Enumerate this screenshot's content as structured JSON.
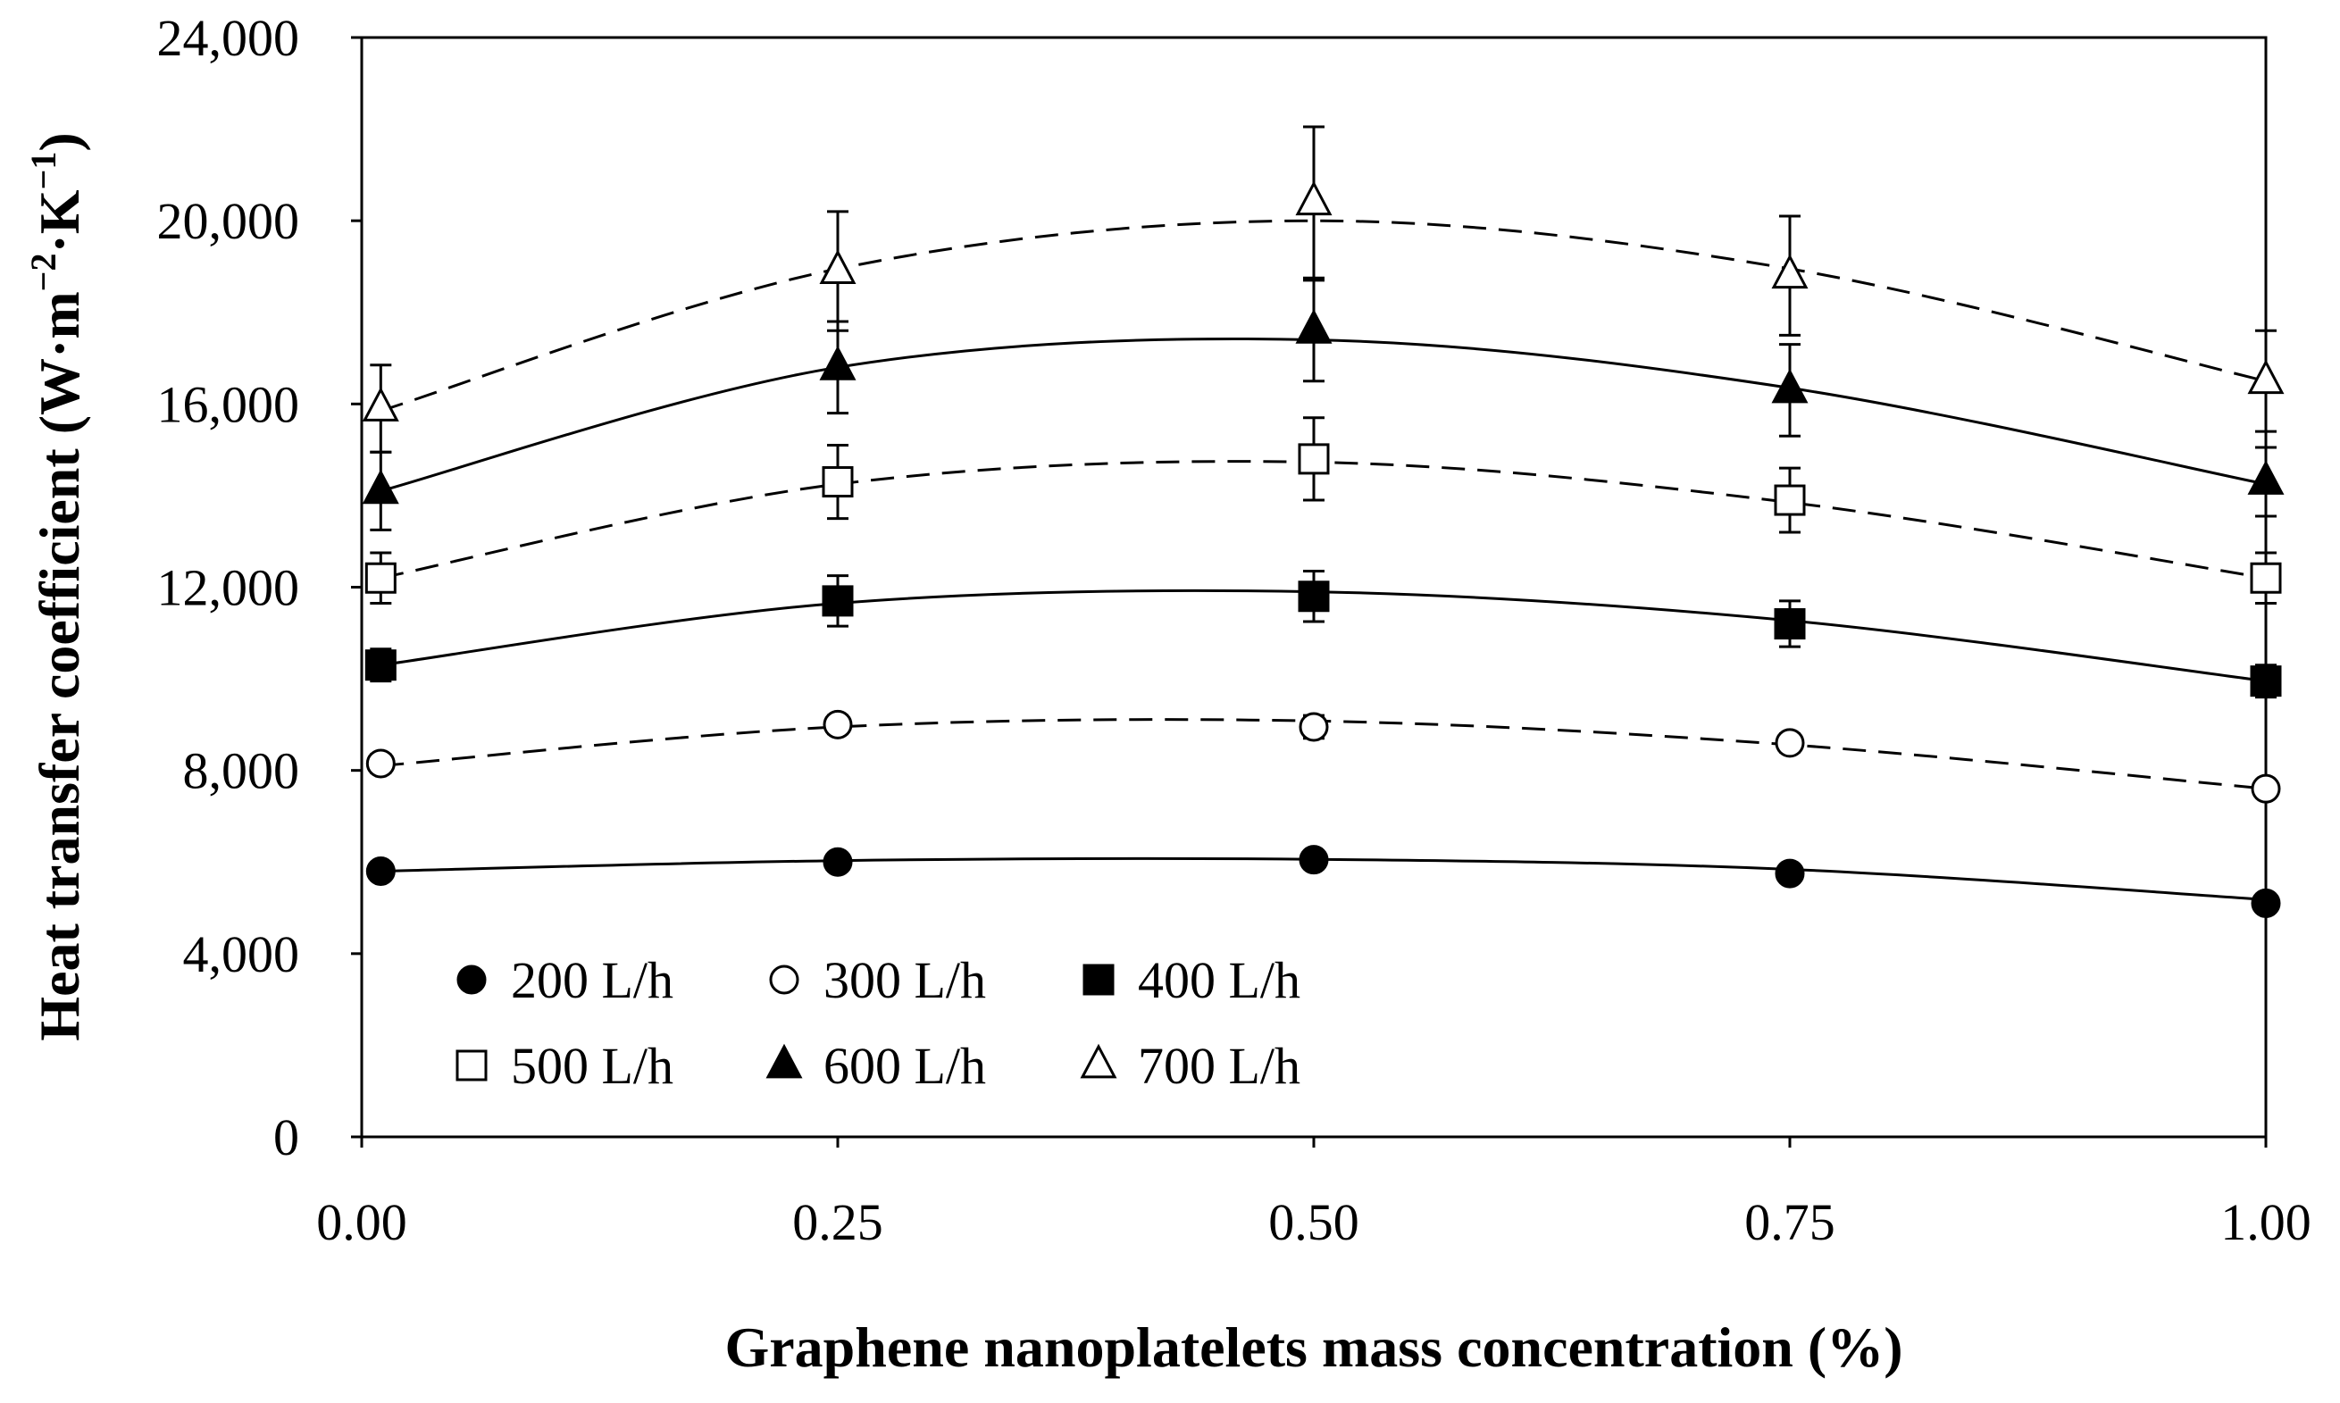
{
  "chart_data": {
    "type": "scatter",
    "title": "",
    "xlabel": "Graphene nanoplatelets mass concentration (%)",
    "ylabel_main": "Heat transfer coefficient (W·m",
    "ylabel_sup1": "−2",
    "ylabel_mid": "·K",
    "ylabel_sup2": "−1",
    "ylabel_end": ")",
    "xlim": [
      0,
      1
    ],
    "ylim": [
      0,
      24000
    ],
    "x_ticks": [
      0,
      0.25,
      0.5,
      0.75,
      1.0
    ],
    "x_tick_labels": [
      "0.00",
      "0.25",
      "0.50",
      "0.75",
      "1.00"
    ],
    "y_ticks": [
      0,
      4000,
      8000,
      12000,
      16000,
      20000,
      24000
    ],
    "y_tick_labels": [
      "0",
      "4,000",
      "8,000",
      "12,000",
      "16,000",
      "20,000",
      "24,000"
    ],
    "x": [
      0.01,
      0.25,
      0.5,
      0.75,
      1.0
    ],
    "legend_position": "bottom-left inside",
    "series": [
      {
        "name": "200 L/h",
        "marker": "circle-filled",
        "line": "solid",
        "values": [
          5800,
          6000,
          6050,
          5750,
          5100
        ],
        "errors": [
          0,
          0,
          0,
          0,
          0
        ],
        "fit": [
          5800,
          6030,
          6060,
          5840,
          5180
        ]
      },
      {
        "name": "300 L/h",
        "marker": "circle-open",
        "line": "dashed",
        "values": [
          8150,
          9000,
          8950,
          8600,
          7600
        ],
        "errors": [
          200,
          200,
          250,
          200,
          0
        ],
        "fit": [
          8100,
          8950,
          9080,
          8560,
          7600
        ]
      },
      {
        "name": "400 L/h",
        "marker": "square-filled",
        "line": "solid",
        "values": [
          10300,
          11700,
          11800,
          11200,
          9950
        ],
        "errors": [
          350,
          550,
          550,
          500,
          350
        ],
        "fit": [
          10300,
          11650,
          11900,
          11270,
          9950
        ]
      },
      {
        "name": "500 L/h",
        "marker": "square-open",
        "line": "dashed",
        "values": [
          12200,
          14300,
          14800,
          13900,
          12200
        ],
        "errors": [
          550,
          800,
          900,
          700,
          550
        ],
        "fit": [
          12200,
          14250,
          14730,
          13850,
          12200
        ]
      },
      {
        "name": "600 L/h",
        "marker": "triangle-filled",
        "line": "solid",
        "values": [
          14100,
          16800,
          17600,
          16300,
          14300
        ],
        "errors": [
          850,
          1000,
          1100,
          1000,
          750
        ],
        "fit": [
          14100,
          16800,
          17400,
          16350,
          14250
        ]
      },
      {
        "name": "700 L/h",
        "marker": "triangle-open",
        "line": "dashed",
        "values": [
          15900,
          18900,
          20400,
          18800,
          16500
        ],
        "errors": [
          950,
          1300,
          1650,
          1300,
          1100
        ],
        "fit": [
          15850,
          18950,
          20000,
          18950,
          16500
        ]
      }
    ]
  }
}
